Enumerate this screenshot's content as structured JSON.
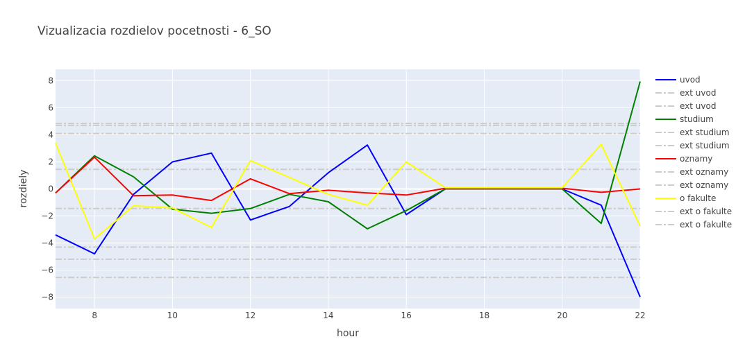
{
  "chart_data": {
    "type": "line",
    "title": "Vizualizacia rozdielov pocetnosti - 6_SO",
    "xlabel": "hour",
    "ylabel": "rozdiely",
    "xlim": [
      7,
      22
    ],
    "ylim": [
      -8.85,
      8.85
    ],
    "xticks": [
      8,
      10,
      12,
      14,
      16,
      18,
      20,
      22
    ],
    "yticks": [
      -8,
      -6,
      -4,
      -2,
      0,
      2,
      4,
      6,
      8
    ],
    "x": [
      7,
      8,
      9,
      10,
      11,
      12,
      13,
      14,
      15,
      16,
      17,
      18,
      19,
      20,
      21,
      22
    ],
    "plot_bg": "#e5ecf6",
    "grid": true,
    "legend_position": "right",
    "series": [
      {
        "name": "uvod",
        "color": "#0000ff",
        "values": [
          -3.4,
          -4.8,
          -0.4,
          2.0,
          2.65,
          -2.3,
          -1.3,
          1.2,
          3.25,
          -1.9,
          0.0,
          0.0,
          0.0,
          0.0,
          -1.2,
          -8.0
        ]
      },
      {
        "name": "studium",
        "color": "#008000",
        "values": [
          -0.3,
          2.45,
          0.9,
          -1.5,
          -1.8,
          -1.45,
          -0.4,
          -0.95,
          -2.95,
          -1.6,
          0.0,
          0.0,
          0.0,
          0.0,
          -2.55,
          7.95
        ]
      },
      {
        "name": "oznamy",
        "color": "#ff0000",
        "values": [
          -0.3,
          2.35,
          -0.5,
          -0.45,
          -0.85,
          0.75,
          -0.35,
          -0.1,
          -0.3,
          -0.45,
          0.05,
          0.05,
          0.05,
          0.05,
          -0.25,
          0.0
        ]
      },
      {
        "name": "o fakulte",
        "color": "#ffff00",
        "values": [
          3.4,
          -3.7,
          -1.25,
          -1.4,
          -2.85,
          2.1,
          0.85,
          -0.4,
          -1.2,
          2.0,
          0.1,
          0.1,
          0.1,
          0.1,
          3.3,
          -2.75
        ]
      }
    ],
    "reference_lines": [
      {
        "name": "ext uvod",
        "value": 4.85
      },
      {
        "name": "ext uvod",
        "value": -6.55
      },
      {
        "name": "ext studium",
        "value": 4.7
      },
      {
        "name": "ext studium",
        "value": -5.2
      },
      {
        "name": "ext oznamy",
        "value": 1.45
      },
      {
        "name": "ext oznamy",
        "value": -1.45
      },
      {
        "name": "ext o fakulte",
        "value": 4.1
      },
      {
        "name": "ext o fakulte",
        "value": -4.3
      }
    ],
    "reference_color": "#cccccc",
    "legend": [
      {
        "name": "uvod",
        "color": "#0000ff",
        "dash": false
      },
      {
        "name": "ext uvod",
        "color": "#cccccc",
        "dash": true
      },
      {
        "name": "ext uvod",
        "color": "#cccccc",
        "dash": true
      },
      {
        "name": "studium",
        "color": "#008000",
        "dash": false
      },
      {
        "name": "ext studium",
        "color": "#cccccc",
        "dash": true
      },
      {
        "name": "ext studium",
        "color": "#cccccc",
        "dash": true
      },
      {
        "name": "oznamy",
        "color": "#ff0000",
        "dash": false
      },
      {
        "name": "ext oznamy",
        "color": "#cccccc",
        "dash": true
      },
      {
        "name": "ext oznamy",
        "color": "#cccccc",
        "dash": true
      },
      {
        "name": "o fakulte",
        "color": "#ffff00",
        "dash": false
      },
      {
        "name": "ext o fakulte",
        "color": "#cccccc",
        "dash": true
      },
      {
        "name": "ext o fakulte",
        "color": "#cccccc",
        "dash": true
      }
    ]
  }
}
